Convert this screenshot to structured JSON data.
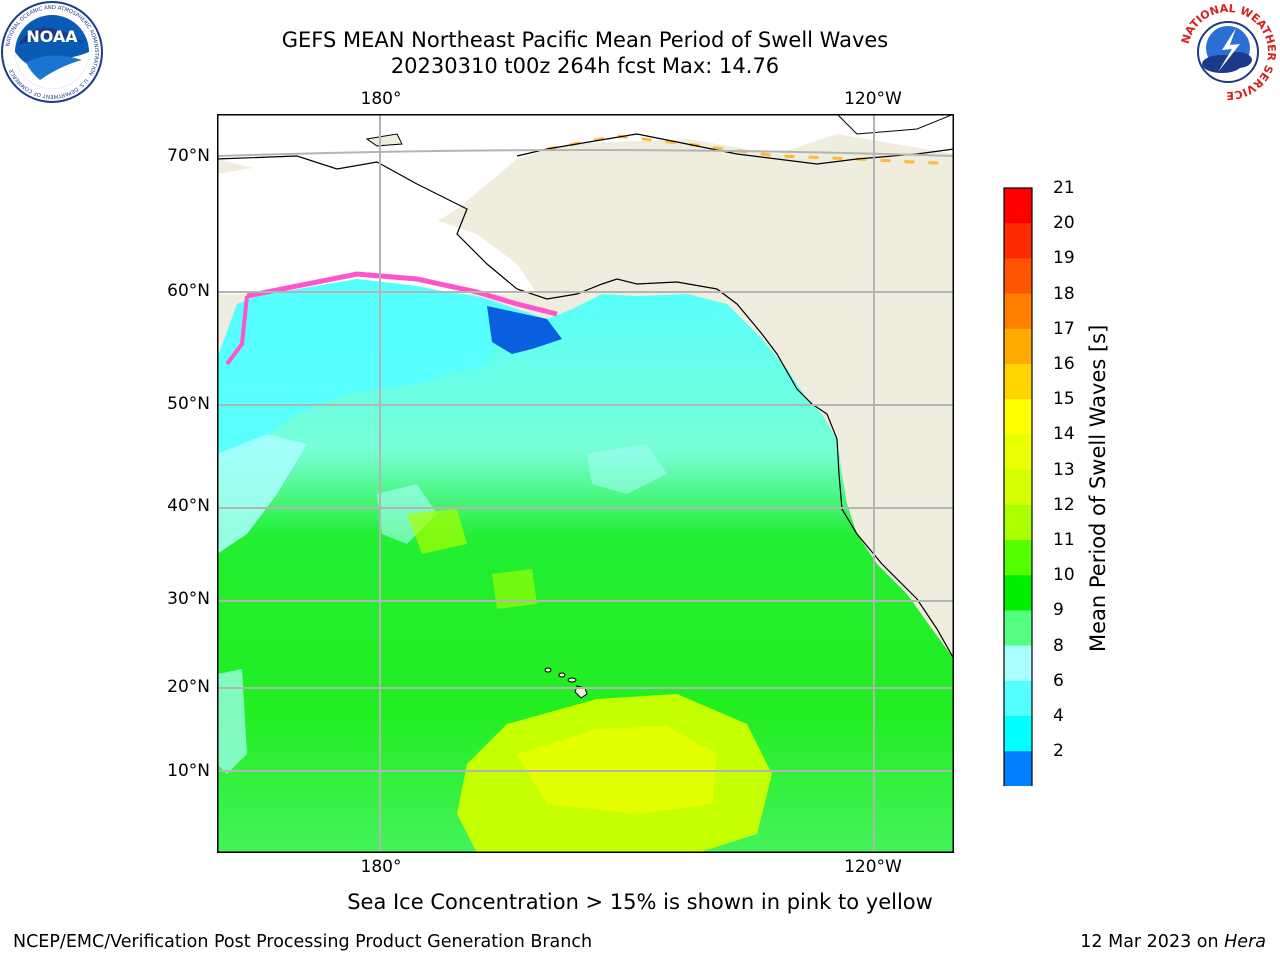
{
  "title": {
    "line1": "GEFS MEAN Northeast Pacific Mean Period of Swell Waves",
    "line2": "20230310 t00z 264h fcst   Max: 14.76"
  },
  "map": {
    "lon_labels_top": [
      "180°",
      "120°W"
    ],
    "lon_labels_bottom": [
      "180°",
      "120°W"
    ],
    "lat_labels": [
      "70°N",
      "60°N",
      "50°N",
      "40°N",
      "30°N",
      "20°N",
      "10°N"
    ],
    "colors": {
      "land": "#efedde",
      "frame": "#000000",
      "grid": "#b4b4b4"
    }
  },
  "colorbar": {
    "title": "Mean Period of Swell Waves [s]",
    "ticks": [
      "21",
      "20",
      "19",
      "18",
      "17",
      "16",
      "15",
      "14",
      "13",
      "12",
      "11",
      "10",
      "9",
      "8",
      "6",
      "4",
      "2"
    ],
    "colors": [
      "#ff0000",
      "#ff2b00",
      "#ff5500",
      "#ff7f00",
      "#ffaa00",
      "#ffd400",
      "#ffff00",
      "#eaff00",
      "#d4ff00",
      "#aaff00",
      "#55ff00",
      "#00ee00",
      "#55ff7f",
      "#aaffff",
      "#55ffff",
      "#00ffff",
      "#0080ff"
    ],
    "under_color": "#0000ff"
  },
  "footer": {
    "note": "Sea Ice Concentration > 15% is shown in pink to yellow",
    "left": "NCEP/EMC/Verification Post Processing Product Generation Branch",
    "right_prefix": "12 Mar 2023 on ",
    "right_host": "Hera"
  },
  "logos": {
    "noaa": {
      "text": "NOAA",
      "ring_text": "NATIONAL OCEANIC AND ATMOSPHERIC ADMINISTRATION · U.S. DEPARTMENT OF COMMERCE"
    },
    "nws": {
      "ring_text": "NATIONAL WEATHER SERVICE"
    }
  }
}
